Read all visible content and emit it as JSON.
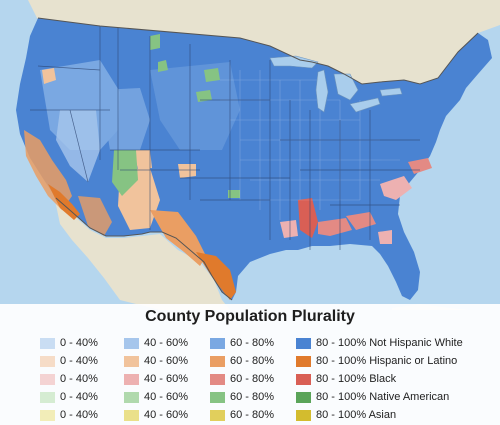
{
  "legend": {
    "title": "County Population Plurality",
    "rows": [
      {
        "group": "Not Hispanic White",
        "labels": [
          "0 - 40%",
          "40 - 60%",
          "60 - 80%",
          "80 - 100% Not Hispanic White"
        ],
        "colors": [
          "#c9ddf3",
          "#a6c6ec",
          "#7aa8e2",
          "#4a83d2"
        ]
      },
      {
        "group": "Hispanic or Latino",
        "labels": [
          "0 - 40%",
          "40 - 60%",
          "60 - 80%",
          "80 - 100% Hispanic or Latino"
        ],
        "colors": [
          "#f6dcc7",
          "#f1c39c",
          "#ea9e63",
          "#e07a2c"
        ]
      },
      {
        "group": "Black",
        "labels": [
          "0 - 40%",
          "40 - 60%",
          "60 - 80%",
          "80 - 100% Black"
        ],
        "colors": [
          "#f4d3d3",
          "#edb1b1",
          "#e38a84",
          "#d95f55"
        ]
      },
      {
        "group": "Native American",
        "labels": [
          "0 - 40%",
          "40 - 60%",
          "60 - 80%",
          "80 - 100% Native American"
        ],
        "colors": [
          "#d5ecd2",
          "#b0d9ad",
          "#86c383",
          "#5aa459"
        ]
      },
      {
        "group": "Asian",
        "labels": [
          "0 - 40%",
          "40 - 60%",
          "60 - 80%",
          "80 - 100% Asian"
        ],
        "colors": [
          "#f2edb8",
          "#eae08a",
          "#e1cf5c",
          "#d3bc2e"
        ]
      }
    ]
  },
  "map_colors": {
    "ocean": "#b5d6ee",
    "land_outside": "#e7e2cf",
    "great_lakes": "#a9cdec",
    "state_lines": "#2c4470",
    "country_lines": "#555555"
  }
}
